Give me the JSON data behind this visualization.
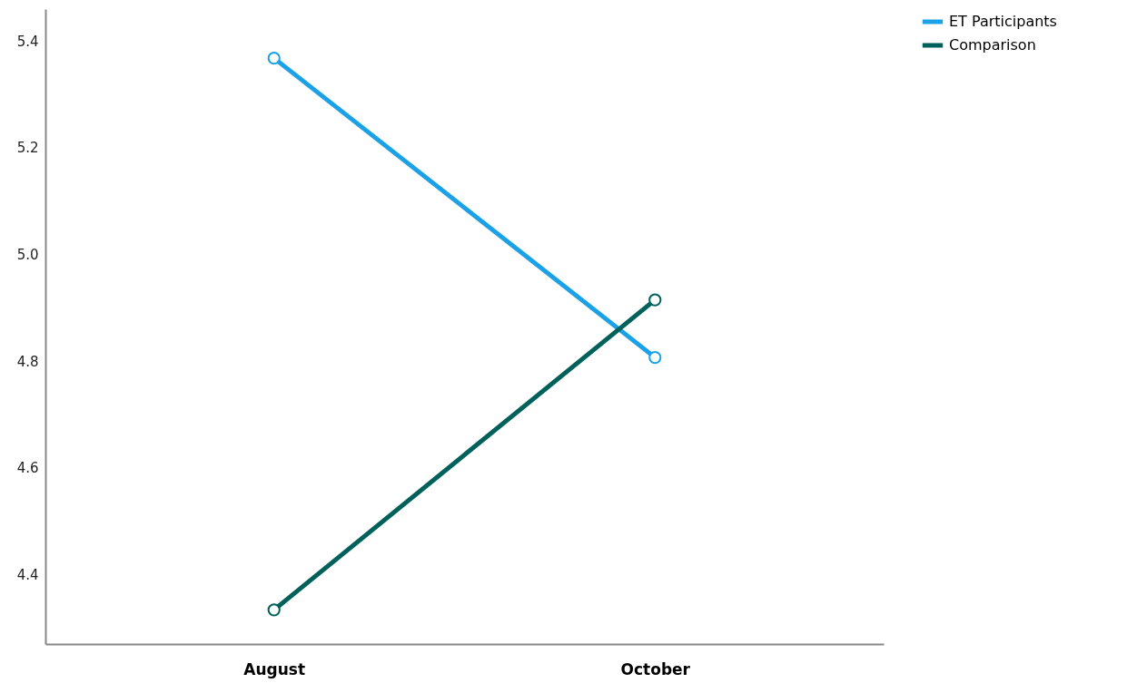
{
  "chart_data": {
    "type": "line",
    "categories": [
      "August",
      "October"
    ],
    "series": [
      {
        "name": "ET Participants",
        "color": "#1ba1e6",
        "values": [
          5.368,
          4.807
        ]
      },
      {
        "name": "Comparison",
        "color": "#00605a",
        "values": [
          4.334,
          4.915
        ]
      }
    ],
    "ylim": [
      4.27,
      5.46
    ],
    "yticks": [
      4.4,
      4.6,
      4.8,
      {
        "value": 5,
        "label": "5.0"
      },
      5.2,
      5.4
    ],
    "grid": false,
    "legend": "top right",
    "marker": "circle",
    "line_style": "solid"
  }
}
